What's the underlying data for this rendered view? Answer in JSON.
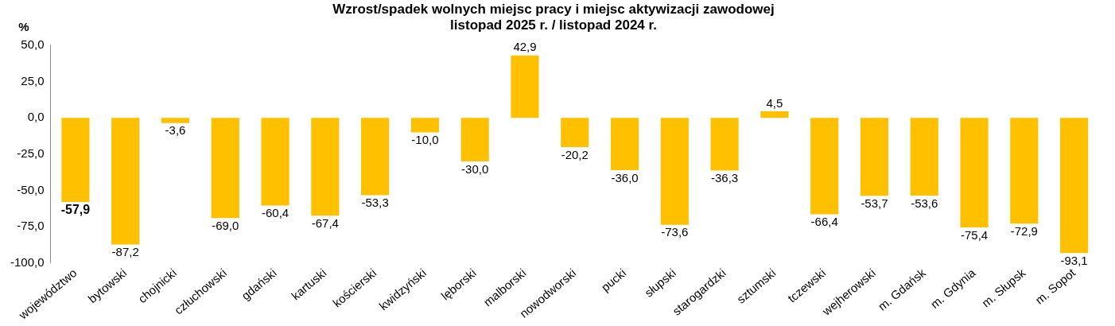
{
  "chart_data": {
    "type": "bar",
    "title": "Wzrost/spadek wolnych miejsc pracy i miejsc aktywizacji zawodowej",
    "subtitle": "listopad 2025 r. / listopad 2024 r.",
    "ylabel": "%",
    "categories": [
      "województwo",
      "bytowski",
      "chojnicki",
      "człuchowski",
      "gdański",
      "kartuski",
      "kościerski",
      "kwidzyński",
      "lęborski",
      "malborski",
      "nowodworski",
      "pucki",
      "słupski",
      "starogardzki",
      "sztumski",
      "tczewski",
      "wejherowski",
      "m. Gdańsk",
      "m. Gdynia",
      "m. Słupsk",
      "m. Sopot"
    ],
    "values": [
      -57.9,
      -87.2,
      -3.6,
      -69.0,
      -60.4,
      -67.4,
      -53.3,
      -10.0,
      -30.0,
      42.9,
      -20.2,
      -36.0,
      -73.6,
      -36.3,
      4.5,
      -66.4,
      -53.7,
      -53.6,
      -75.4,
      -72.9,
      -93.1
    ],
    "value_labels": [
      "-57,9",
      "-87,2",
      "-3,6",
      "-69,0",
      "-60,4",
      "-67,4",
      "-53,3",
      "-10,0",
      "-30,0",
      "42,9",
      "-20,2",
      "-36,0",
      "-73,6",
      "-36,3",
      "4,5",
      "-66,4",
      "-53,7",
      "-53,6",
      "-75,4",
      "-72,9",
      "-93,1"
    ],
    "color": "#ffc000",
    "ylim": [
      -100,
      50
    ],
    "yticks": [
      {
        "value": -100,
        "label": "-100,0"
      },
      {
        "value": -75,
        "label": "-75,0"
      },
      {
        "value": -50,
        "label": "-50,0"
      },
      {
        "value": -25,
        "label": "-25,0"
      },
      {
        "value": 0,
        "label": "0,0"
      },
      {
        "value": 25,
        "label": "25,0"
      },
      {
        "value": 50,
        "label": "50,0"
      }
    ],
    "grid": false,
    "legend": false
  }
}
